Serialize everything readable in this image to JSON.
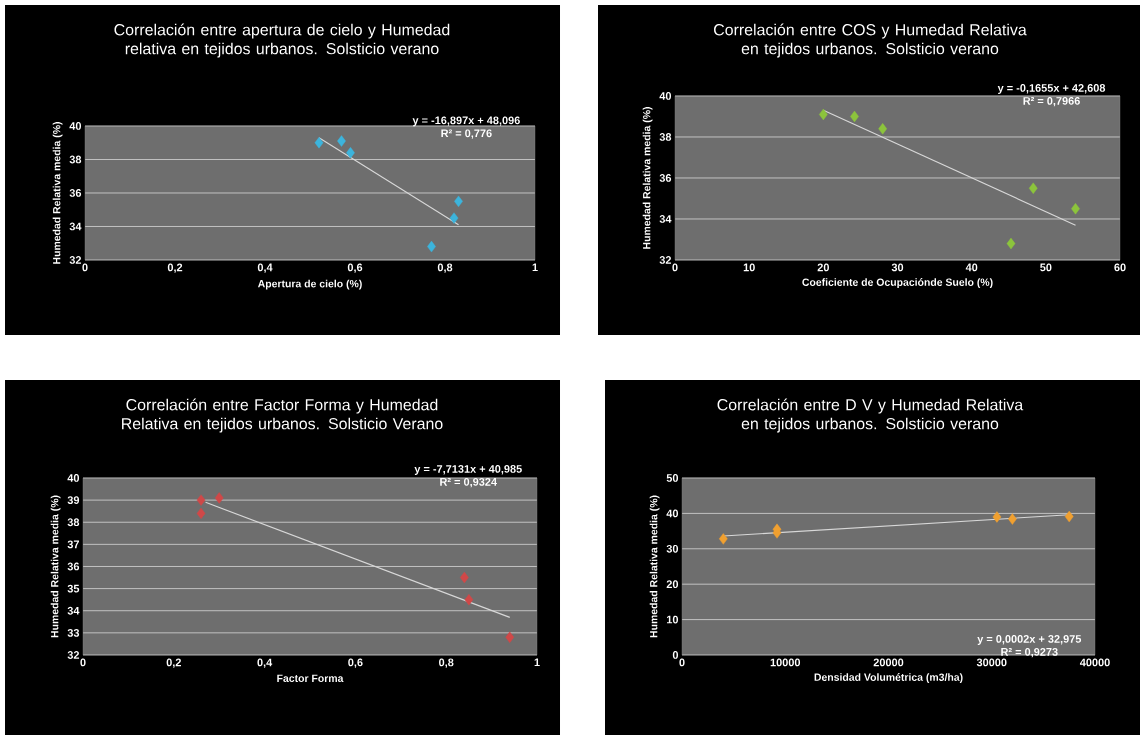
{
  "chart_data": [
    {
      "type": "scatter",
      "title": "Correlación entre apertura de cielo y Humedad relativa en tejidos urbanos. Solsticio verano",
      "xlabel": "Apertura de cielo (%)",
      "ylabel": "Humedad Relativa media (%)",
      "grid": "y",
      "xlim": [
        0,
        1
      ],
      "ylim": [
        32,
        40
      ],
      "xticks": [
        0,
        {
          "value": 0.2,
          "label": "0,2"
        },
        {
          "value": 0.4,
          "label": "0,4"
        },
        {
          "value": 0.6,
          "label": "0,6"
        },
        {
          "value": 0.8,
          "label": "0,8"
        },
        1
      ],
      "yticks": [
        32,
        34,
        36,
        38,
        40
      ],
      "annotations": [
        "y = -16,897x + 48,096",
        "R² = 0,776"
      ],
      "series": [
        {
          "marker": "diamond",
          "color": "#3cb4dc",
          "x": [
            0.52,
            0.57,
            0.59,
            0.83,
            0.82,
            0.77
          ],
          "values": [
            39.0,
            39.1,
            38.4,
            35.5,
            34.5,
            32.8
          ]
        },
        {
          "type": "line",
          "marker": "none",
          "color": "#d8d8d8",
          "x": [
            0.52,
            0.83
          ],
          "values": [
            39.3,
            34.1
          ]
        }
      ]
    },
    {
      "type": "scatter",
      "title": "Correlación entre COS y Humedad Relativa en tejidos urbanos. Solsticio verano",
      "xlabel": "Coeficiente de Ocupaciónde Suelo (%)",
      "ylabel": "Humedad Relativa media (%)",
      "grid": "y",
      "xlim": [
        0,
        60
      ],
      "ylim": [
        32,
        40
      ],
      "xticks": [
        0,
        10,
        20,
        30,
        40,
        50,
        60
      ],
      "yticks": [
        32,
        34,
        36,
        38,
        40
      ],
      "annotations": [
        "y = -0,1655x + 42,608",
        "R² = 0,7966"
      ],
      "series": [
        {
          "marker": "diamond",
          "color": "#8cc43c",
          "x": [
            20,
            24.2,
            28,
            48.3,
            45.3,
            54
          ],
          "values": [
            39.1,
            39.0,
            38.4,
            35.5,
            32.8,
            34.5
          ]
        },
        {
          "type": "line",
          "marker": "none",
          "color": "#d8d8d8",
          "x": [
            20,
            54
          ],
          "values": [
            39.3,
            33.7
          ]
        }
      ]
    },
    {
      "type": "scatter",
      "title": "Correlación entre Factor Forma y Humedad Relativa en tejidos urbanos. Solsticio Verano",
      "xlabel": "Factor Forma",
      "ylabel": "Humedad Relativa media (%)",
      "grid": "y",
      "xlim": [
        0,
        1
      ],
      "ylim": [
        32,
        40
      ],
      "xticks": [
        0,
        {
          "value": 0.2,
          "label": "0,2"
        },
        {
          "value": 0.4,
          "label": "0,4"
        },
        {
          "value": 0.6,
          "label": "0,6"
        },
        {
          "value": 0.8,
          "label": "0,8"
        },
        1
      ],
      "yticks": [
        32,
        33,
        34,
        35,
        36,
        37,
        38,
        39,
        40
      ],
      "annotations": [
        "y = -7,7131x + 40,985",
        "R² = 0,9324"
      ],
      "series": [
        {
          "marker": "diamond",
          "color": "#d04848",
          "x": [
            0.26,
            0.3,
            0.26,
            0.84,
            0.85,
            0.94
          ],
          "values": [
            39.0,
            39.1,
            38.4,
            35.5,
            34.5,
            32.8
          ]
        },
        {
          "type": "line",
          "marker": "none",
          "color": "#d8d8d8",
          "x": [
            0.27,
            0.94
          ],
          "values": [
            38.9,
            33.7
          ]
        }
      ]
    },
    {
      "type": "scatter",
      "title": "Correlación entre D V y Humedad Relativa en tejidos urbanos. Solsticio verano",
      "xlabel": "Densidad Volumétrica (m3/ha)",
      "ylabel": "Humedad Relativa media (%)",
      "grid": "y",
      "xlim": [
        0,
        40000
      ],
      "ylim": [
        0,
        50
      ],
      "xticks": [
        0,
        10000,
        20000,
        30000,
        40000
      ],
      "yticks": [
        0,
        10,
        20,
        30,
        40,
        50
      ],
      "annotations": [
        "y = 0,0002x + 32,975",
        "R² = 0,9273"
      ],
      "series": [
        {
          "marker": "diamond",
          "color": "#f0a030",
          "x": [
            4000,
            9200,
            9200,
            30500,
            32000,
            37500
          ],
          "values": [
            32.8,
            34.5,
            35.5,
            39.0,
            38.4,
            39.1
          ]
        },
        {
          "type": "line",
          "marker": "none",
          "color": "#d8d8d8",
          "x": [
            4000,
            37500
          ],
          "values": [
            33.6,
            39.6
          ]
        }
      ]
    }
  ]
}
